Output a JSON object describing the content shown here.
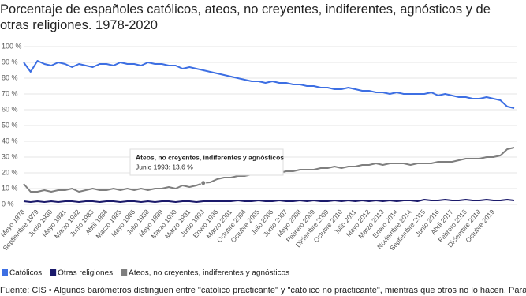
{
  "chart_data": {
    "type": "line",
    "title": "Porcentaje de españoles católicos, ateos, no creyentes, indiferentes, agnósticos y de otras religiones. 1978-2020",
    "categories": [
      "Mayo 1978",
      null,
      "Septiembre 1979",
      null,
      "Junio 1980",
      null,
      "Mayo 1981",
      null,
      "Marzo 1982",
      null,
      "Junio 1983",
      null,
      "Abril 1984",
      null,
      "Marzo 1985",
      null,
      "Mayo 1986",
      null,
      "Julio 1988",
      null,
      "Mayo 1989",
      null,
      "Marzo 1990",
      null,
      "Marzo 1991",
      null,
      "Junio 1993",
      null,
      "Enero 1996",
      null,
      "Marzo 2001",
      null,
      "Octubre 2004",
      null,
      "Octubre 2005",
      null,
      "Julio 2006",
      null,
      "Junio 2007",
      null,
      "Mayo 2008",
      null,
      "Febrero 2009",
      null,
      "Diciembre 2009",
      null,
      "Octubre 2010",
      null,
      "Julio 2011",
      null,
      "Mayo 2012",
      null,
      "Marzo 2013",
      null,
      "Enero 2014",
      null,
      "Noviembre 2014",
      null,
      "Septiembre 2015",
      null,
      "Junio 2016",
      null,
      "Abril 2017",
      null,
      "Febrero 2018",
      null,
      "Diciembre 2018",
      null,
      "Octubre 2019",
      null,
      null,
      null
    ],
    "series": [
      {
        "name": "Católicos",
        "color": "#3d6fe3",
        "values": [
          90,
          84,
          91,
          89,
          88,
          90,
          89,
          87,
          89,
          88,
          87,
          89,
          89,
          88,
          90,
          89,
          89,
          88,
          90,
          89,
          89,
          88,
          88,
          86,
          87,
          86,
          85,
          84,
          83,
          82,
          81,
          80,
          79,
          78,
          78,
          77,
          78,
          77,
          77,
          76,
          76,
          75,
          75,
          74,
          74,
          73,
          73,
          74,
          73,
          72,
          72,
          71,
          71,
          70,
          71,
          70,
          70,
          70,
          70,
          71,
          69,
          70,
          69,
          68,
          68,
          67,
          67,
          68,
          67,
          66,
          62,
          61
        ]
      },
      {
        "name": "Otras religiones",
        "color": "#1b1a6b",
        "values": [
          2,
          1.5,
          2,
          1.5,
          2,
          1.5,
          2,
          2,
          1.5,
          2,
          2,
          1.5,
          2,
          2,
          1.5,
          2,
          2,
          1.5,
          2,
          1.5,
          2,
          2,
          1.5,
          2,
          2,
          1.5,
          2,
          2,
          2,
          2,
          2,
          2.5,
          2,
          2,
          2.5,
          2,
          2,
          2.5,
          2,
          2,
          2.5,
          2,
          2.5,
          2,
          2,
          2.5,
          2,
          2.5,
          2,
          2.5,
          2,
          2.5,
          2,
          2.5,
          2,
          2.5,
          2.5,
          2,
          3,
          2.5,
          2.5,
          3,
          2.5,
          2.5,
          3,
          2.5,
          2.5,
          3,
          2.5,
          2.5,
          3,
          2.5
        ]
      },
      {
        "name": "Ateos, no creyentes, indiferentes y agnósticos",
        "color": "#7f7f7f",
        "values": [
          13,
          8,
          8,
          9,
          8,
          9,
          9,
          10,
          8,
          9,
          10,
          9,
          9,
          10,
          9,
          10,
          9,
          10,
          9,
          10,
          10,
          11,
          10,
          12,
          11,
          12,
          13.6,
          14,
          16,
          17,
          17,
          18,
          18,
          19,
          19,
          20,
          20,
          20,
          21,
          21,
          22,
          22,
          22,
          23,
          23,
          24,
          23,
          24,
          24,
          25,
          25,
          26,
          25,
          26,
          26,
          26,
          25,
          26,
          26,
          26,
          27,
          27,
          27,
          28,
          29,
          29,
          29,
          30,
          30,
          31,
          35,
          36
        ]
      }
    ],
    "ylim": [
      0,
      100
    ],
    "yticks": [
      {
        "value": 0,
        "label": "0 %"
      },
      {
        "value": 10,
        "label": "10 %"
      },
      {
        "value": 20,
        "label": "20 %"
      },
      {
        "value": 30,
        "label": "30 %"
      },
      {
        "value": 40,
        "label": "40 %"
      },
      {
        "value": 50,
        "label": "50 %"
      },
      {
        "value": 60,
        "label": "60 %"
      },
      {
        "value": 70,
        "label": "70 %"
      },
      {
        "value": 80,
        "label": "80 %"
      },
      {
        "value": 90,
        "label": "90 %"
      },
      {
        "value": 100,
        "label": "100 %"
      }
    ],
    "grid": true,
    "tooltip": {
      "title": "Ateos, no creyentes, indiferentes y agnósticos",
      "text": "Junio 1993: 13,6 %"
    },
    "source": {
      "prefix": "Fuente:",
      "link": "CIS",
      "text": "• Algunos barómetros distinguen entre \"católico practicante\" y \"católico no practicante\", mientras que otros no lo hacen. Para poder"
    }
  }
}
